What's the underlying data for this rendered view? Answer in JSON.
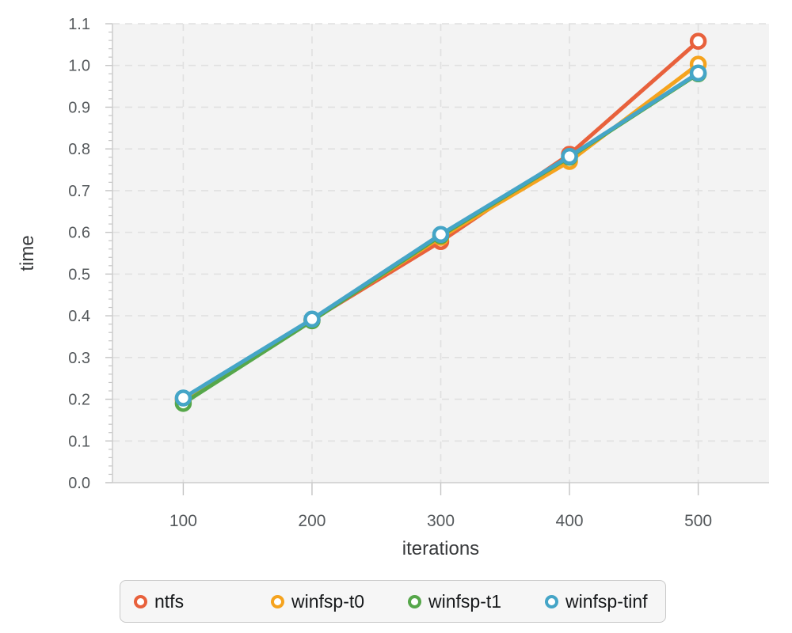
{
  "chart_data": {
    "type": "line",
    "title": "",
    "xlabel": "iterations",
    "ylabel": "time",
    "x": [
      100,
      200,
      300,
      400,
      500
    ],
    "series": [
      {
        "name": "ntfs",
        "color": "#E8613C",
        "values": [
          0.2,
          0.39,
          0.578,
          0.787,
          1.058
        ]
      },
      {
        "name": "winfsp-t0",
        "color": "#F5A31E",
        "values": [
          0.198,
          0.39,
          0.588,
          0.77,
          1.003
        ]
      },
      {
        "name": "winfsp-t1",
        "color": "#56A74A",
        "values": [
          0.19,
          0.388,
          0.592,
          0.78,
          0.98
        ]
      },
      {
        "name": "winfsp-tinf",
        "color": "#45A5C7",
        "values": [
          0.203,
          0.392,
          0.595,
          0.782,
          0.982
        ]
      }
    ],
    "xlim": [
      45,
      555
    ],
    "ylim": [
      0,
      1.1
    ],
    "x_ticks": [
      100,
      200,
      300,
      400,
      500
    ],
    "x_tick_labels": [
      "100",
      "200",
      "300",
      "400",
      "500"
    ],
    "y_ticks": [
      0.0,
      0.1,
      0.2,
      0.3,
      0.4,
      0.5,
      0.6,
      0.7,
      0.8,
      0.9,
      1.0,
      1.1
    ],
    "y_tick_labels": [
      "0.0",
      "0.1",
      "0.2",
      "0.3",
      "0.4",
      "0.5",
      "0.6",
      "0.7",
      "0.8",
      "0.9",
      "1.0",
      "1.1"
    ],
    "y_minor_step": 0.02,
    "grid": true,
    "grid_style": "dashed",
    "legend_position": "bottom",
    "style_colors": {
      "plot_bg": "#f3f3f3",
      "grid": "#e0e0e0",
      "axis_line": "#cccccc",
      "tick": "#c4c4c4",
      "tick_label": "#55595c",
      "axis_title": "#37393b",
      "legend_text": "#17191b",
      "legend_bg": "#f6f6f6",
      "legend_border": "#c8c8c8"
    }
  }
}
